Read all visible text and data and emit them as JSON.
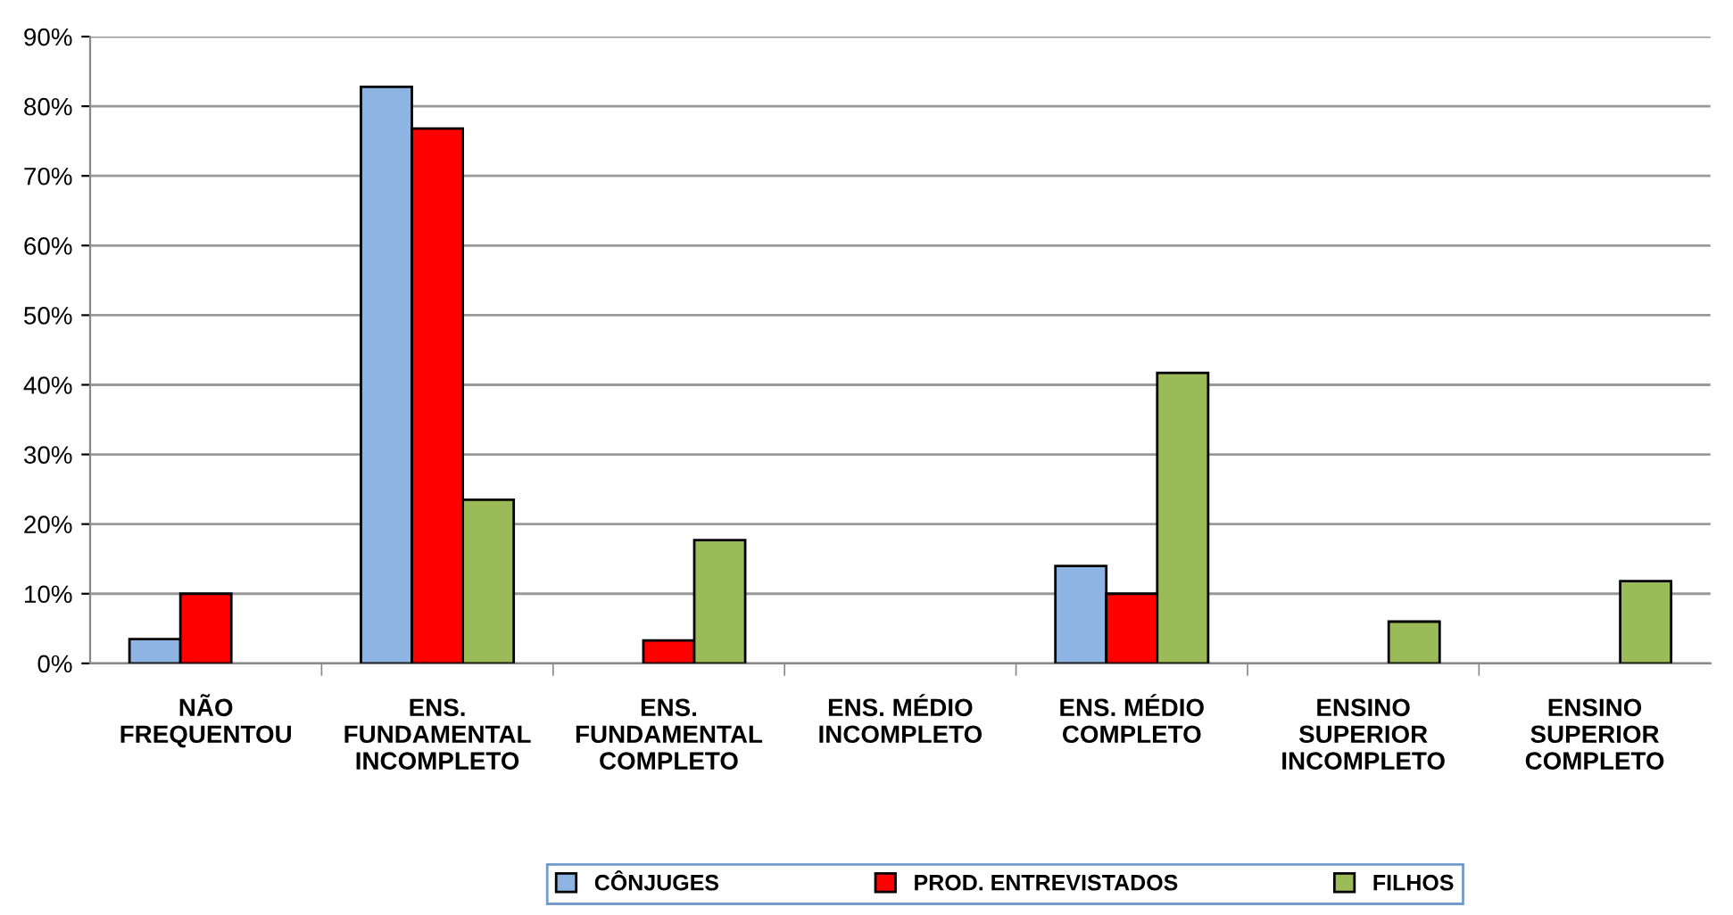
{
  "chart_data": {
    "type": "bar",
    "categories": [
      "NÃO\nFREQUENTOU",
      "ENS.\nFUNDAMENTAL\nINCOMPLETO",
      "ENS.\nFUNDAMENTAL\nCOMPLETO",
      "ENS. MÉDIO\nINCOMPLETO",
      "ENS. MÉDIO\nCOMPLETO",
      "ENSINO\nSUPERIOR\nINCOMPLETO",
      "ENSINO\nSUPERIOR\nCOMPLETO"
    ],
    "series": [
      {
        "name": "CÔNJUGES",
        "color": "#8eb4e3",
        "values": [
          3.5,
          82.8,
          null,
          null,
          14.0,
          null,
          null
        ]
      },
      {
        "name": "PROD. ENTREVISTADOS",
        "color": "#ff0000",
        "values": [
          10,
          76.8,
          3.3,
          null,
          10,
          null,
          null
        ]
      },
      {
        "name": "FILHOS",
        "color": "#9bbb59",
        "values": [
          null,
          23.5,
          17.7,
          null,
          41.7,
          6.0,
          11.8
        ]
      }
    ],
    "ylim": [
      0,
      90
    ],
    "yticks": [
      {
        "value": 0,
        "label": "0%"
      },
      {
        "value": 10,
        "label": "10%"
      },
      {
        "value": 20,
        "label": "20%"
      },
      {
        "value": 30,
        "label": "30%"
      },
      {
        "value": 40,
        "label": "40%"
      },
      {
        "value": 50,
        "label": "50%"
      },
      {
        "value": 60,
        "label": "60%"
      },
      {
        "value": 70,
        "label": "70%"
      },
      {
        "value": 80,
        "label": "80%"
      },
      {
        "value": 90,
        "label": "90%"
      }
    ],
    "grid": "y",
    "legend": "bottom"
  }
}
